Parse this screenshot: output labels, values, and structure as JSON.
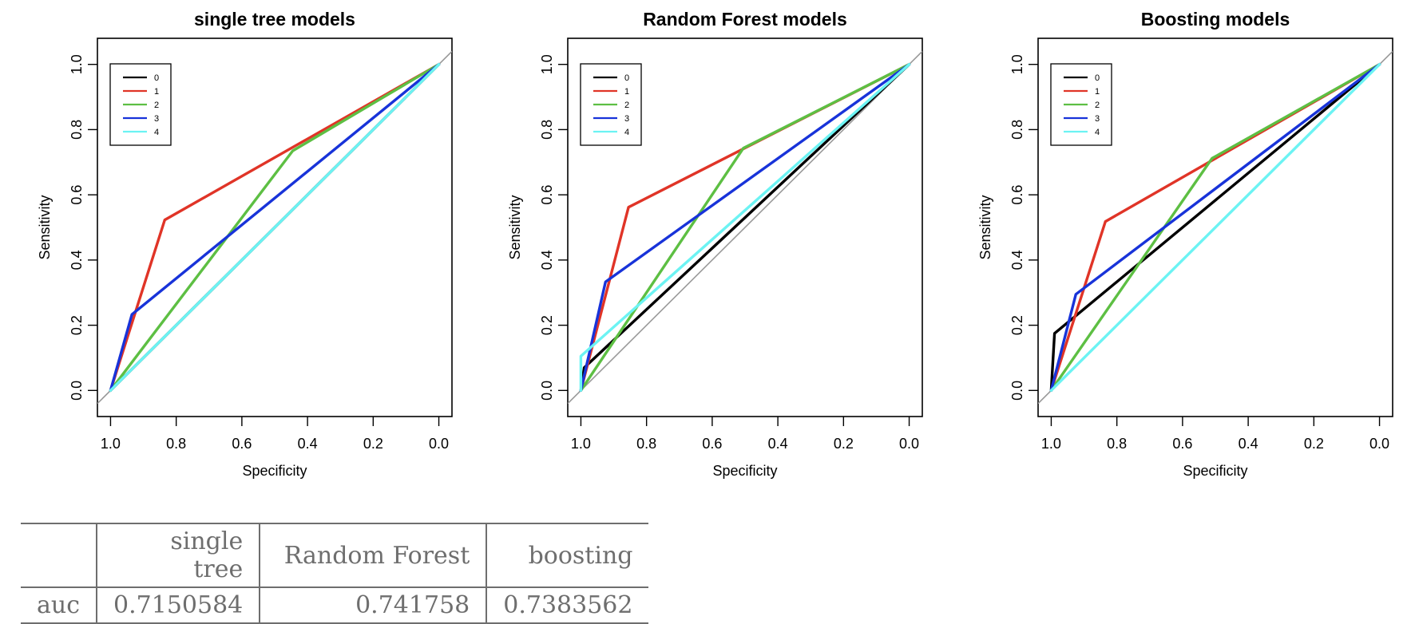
{
  "chart_data": [
    {
      "type": "line",
      "title": "single tree models",
      "xlabel": "Specificity",
      "ylabel": "Sensitivity",
      "x_reversed": true,
      "xlim": [
        1.04,
        -0.04
      ],
      "ylim": [
        -0.08,
        1.08
      ],
      "xticks": [
        "1.0",
        "0.8",
        "0.6",
        "0.4",
        "0.2",
        "0.0"
      ],
      "yticks": [
        "0.0",
        "0.2",
        "0.4",
        "0.6",
        "0.8",
        "1.0"
      ],
      "legend": {
        "position": "top-left",
        "entries": [
          "0",
          "1",
          "2",
          "3",
          "4"
        ]
      },
      "diagonal": true,
      "series": [
        {
          "name": "0",
          "color": "#000000",
          "points": [
            [
              1.0,
              0.0
            ],
            [
              0.0,
              1.0
            ]
          ]
        },
        {
          "name": "1",
          "color": "#e03427",
          "points": [
            [
              1.0,
              0.0
            ],
            [
              0.835,
              0.523
            ],
            [
              0.0,
              1.0
            ]
          ]
        },
        {
          "name": "2",
          "color": "#5dbf43",
          "points": [
            [
              1.0,
              0.0
            ],
            [
              0.445,
              0.735
            ],
            [
              0.0,
              1.0
            ]
          ]
        },
        {
          "name": "3",
          "color": "#1833d9",
          "points": [
            [
              1.0,
              0.0
            ],
            [
              0.935,
              0.233
            ],
            [
              0.0,
              1.0
            ]
          ]
        },
        {
          "name": "4",
          "color": "#6cf3f3",
          "points": [
            [
              1.0,
              0.0
            ],
            [
              0.0,
              1.0
            ]
          ]
        }
      ]
    },
    {
      "type": "line",
      "title": "Random Forest models",
      "xlabel": "Specificity",
      "ylabel": "Sensitivity",
      "x_reversed": true,
      "xlim": [
        1.04,
        -0.04
      ],
      "ylim": [
        -0.08,
        1.08
      ],
      "xticks": [
        "1.0",
        "0.8",
        "0.6",
        "0.4",
        "0.2",
        "0.0"
      ],
      "yticks": [
        "0.0",
        "0.2",
        "0.4",
        "0.6",
        "0.8",
        "1.0"
      ],
      "legend": {
        "position": "top-left",
        "entries": [
          "0",
          "1",
          "2",
          "3",
          "4"
        ]
      },
      "diagonal": true,
      "series": [
        {
          "name": "0",
          "color": "#000000",
          "points": [
            [
              1.0,
              0.0
            ],
            [
              0.99,
              0.07
            ],
            [
              0.0,
              1.0
            ]
          ]
        },
        {
          "name": "1",
          "color": "#e03427",
          "points": [
            [
              1.0,
              0.0
            ],
            [
              0.855,
              0.562
            ],
            [
              0.0,
              1.0
            ]
          ]
        },
        {
          "name": "2",
          "color": "#5dbf43",
          "points": [
            [
              1.0,
              0.0
            ],
            [
              0.505,
              0.743
            ],
            [
              0.0,
              1.0
            ]
          ]
        },
        {
          "name": "3",
          "color": "#1833d9",
          "points": [
            [
              1.0,
              0.0
            ],
            [
              0.925,
              0.333
            ],
            [
              0.0,
              1.0
            ]
          ]
        },
        {
          "name": "4",
          "color": "#6cf3f3",
          "points": [
            [
              1.0,
              0.0
            ],
            [
              1.0,
              0.105
            ],
            [
              0.0,
              1.0
            ]
          ]
        }
      ]
    },
    {
      "type": "line",
      "title": "Boosting models",
      "xlabel": "Specificity",
      "ylabel": "Sensitivity",
      "x_reversed": true,
      "xlim": [
        1.04,
        -0.04
      ],
      "ylim": [
        -0.08,
        1.08
      ],
      "xticks": [
        "1.0",
        "0.8",
        "0.6",
        "0.4",
        "0.2",
        "0.0"
      ],
      "yticks": [
        "0.0",
        "0.2",
        "0.4",
        "0.6",
        "0.8",
        "1.0"
      ],
      "legend": {
        "position": "top-left",
        "entries": [
          "0",
          "1",
          "2",
          "3",
          "4"
        ]
      },
      "diagonal": true,
      "series": [
        {
          "name": "0",
          "color": "#000000",
          "points": [
            [
              1.0,
              0.0
            ],
            [
              0.99,
              0.175
            ],
            [
              0.0,
              1.0
            ]
          ]
        },
        {
          "name": "1",
          "color": "#e03427",
          "points": [
            [
              1.0,
              0.0
            ],
            [
              0.835,
              0.518
            ],
            [
              0.0,
              1.0
            ]
          ]
        },
        {
          "name": "2",
          "color": "#5dbf43",
          "points": [
            [
              1.0,
              0.0
            ],
            [
              0.51,
              0.712
            ],
            [
              0.0,
              1.0
            ]
          ]
        },
        {
          "name": "3",
          "color": "#1833d9",
          "points": [
            [
              1.0,
              0.0
            ],
            [
              0.925,
              0.295
            ],
            [
              0.0,
              1.0
            ]
          ]
        },
        {
          "name": "4",
          "color": "#6cf3f3",
          "points": [
            [
              1.0,
              0.0
            ],
            [
              0.0,
              1.0
            ]
          ]
        }
      ]
    }
  ],
  "auc_table": {
    "headers": [
      "",
      "single tree",
      "Random Forest",
      "boosting"
    ],
    "row_label": "auc",
    "values": [
      "0.7150584",
      "0.741758",
      "0.7383562"
    ]
  }
}
